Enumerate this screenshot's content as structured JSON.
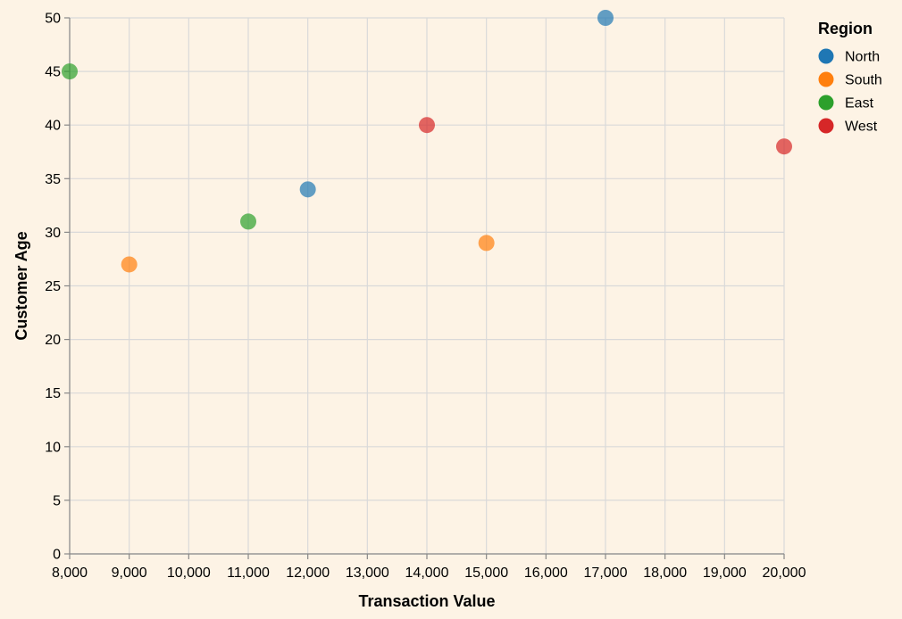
{
  "chart_data": {
    "type": "scatter",
    "xlabel": "Transaction Value",
    "ylabel": "Customer Age",
    "xlim": [
      8000,
      20000
    ],
    "ylim": [
      0,
      50
    ],
    "x_ticks": [
      8000,
      9000,
      10000,
      11000,
      12000,
      13000,
      14000,
      15000,
      16000,
      17000,
      18000,
      19000,
      20000
    ],
    "y_ticks": [
      0,
      5,
      10,
      15,
      20,
      25,
      30,
      35,
      40,
      45,
      50
    ],
    "x_tick_labels": [
      "8,000",
      "9,000",
      "10,000",
      "11,000",
      "12,000",
      "13,000",
      "14,000",
      "15,000",
      "16,000",
      "17,000",
      "18,000",
      "19,000",
      "20,000"
    ],
    "y_tick_labels": [
      "0",
      "5",
      "10",
      "15",
      "20",
      "25",
      "30",
      "35",
      "40",
      "45",
      "50"
    ],
    "grid": true,
    "legend": {
      "title": "Region",
      "placement": "right"
    },
    "series": [
      {
        "name": "North",
        "color": "#1f77b4",
        "points": [
          {
            "x": 12000,
            "y": 34
          },
          {
            "x": 17000,
            "y": 50
          }
        ]
      },
      {
        "name": "South",
        "color": "#ff7f0e",
        "points": [
          {
            "x": 9000,
            "y": 27
          },
          {
            "x": 15000,
            "y": 29
          }
        ]
      },
      {
        "name": "East",
        "color": "#2ca02c",
        "points": [
          {
            "x": 8000,
            "y": 45
          },
          {
            "x": 11000,
            "y": 31
          }
        ]
      },
      {
        "name": "West",
        "color": "#d62728",
        "points": [
          {
            "x": 14000,
            "y": 40
          },
          {
            "x": 20000,
            "y": 38
          }
        ]
      }
    ]
  }
}
